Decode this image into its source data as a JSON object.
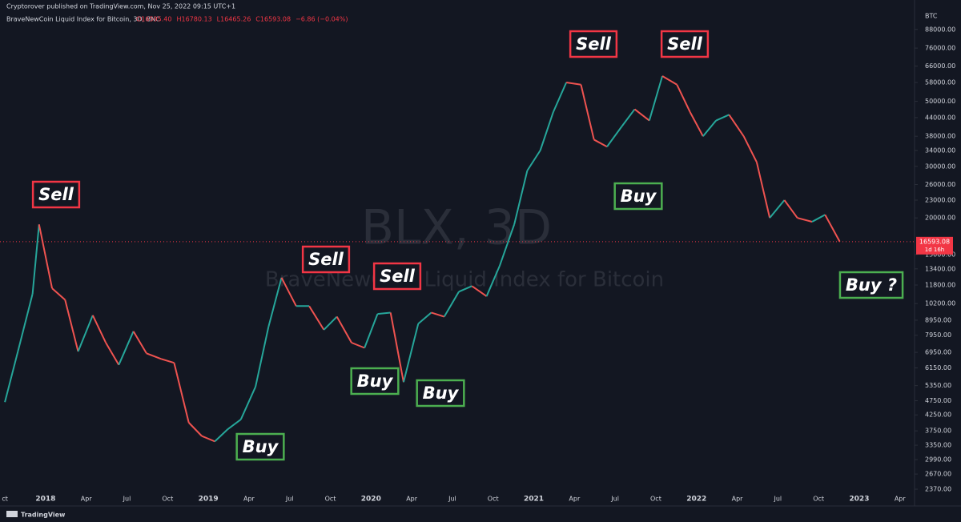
{
  "header": "Cryptorover published on TradingView.com, Nov 25, 2022 09:15 UTC+1",
  "footer": "TradingView",
  "chart_data": {
    "type": "line",
    "title": "BraveNewCoin Liquid Index for Bitcoin, 3D, BNC",
    "legend_values": [
      "O16595.40",
      "H16780.13",
      "L16465.26",
      "C16593.08",
      "−6.86 (−0.04%)"
    ],
    "watermark": [
      "BLX, 3D",
      "BraveNewCoin Liquid Index for Bitcoin"
    ],
    "y_unit": "BTC",
    "log_scale": true,
    "grid": false,
    "up_color": "#26a69a",
    "down_color": "#ef5350",
    "last_price": {
      "value": 16593.08,
      "label": "16593.08"
    },
    "countdown": "1d 16h",
    "xlim": [
      2017.72,
      2023.33
    ],
    "ylim": [
      2240,
      93000
    ],
    "x": [
      2017.75,
      2017.83,
      2017.92,
      2017.96,
      2018.04,
      2018.12,
      2018.2,
      2018.29,
      2018.37,
      2018.45,
      2018.54,
      2018.62,
      2018.71,
      2018.79,
      2018.88,
      2018.96,
      2019.04,
      2019.12,
      2019.2,
      2019.29,
      2019.37,
      2019.45,
      2019.54,
      2019.62,
      2019.71,
      2019.79,
      2019.88,
      2019.96,
      2020.04,
      2020.12,
      2020.2,
      2020.29,
      2020.37,
      2020.45,
      2020.54,
      2020.62,
      2020.71,
      2020.79,
      2020.88,
      2020.96,
      2021.04,
      2021.12,
      2021.2,
      2021.29,
      2021.37,
      2021.45,
      2021.54,
      2021.62,
      2021.71,
      2021.79,
      2021.88,
      2021.96,
      2022.04,
      2022.12,
      2022.2,
      2022.29,
      2022.37,
      2022.45,
      2022.54,
      2022.62,
      2022.71,
      2022.79,
      2022.88
    ],
    "series": [
      {
        "name": "BLX",
        "values": [
          4700,
          7000,
          11000,
          19000,
          11500,
          10500,
          7000,
          9300,
          7500,
          6300,
          8200,
          6900,
          6600,
          6400,
          4000,
          3600,
          3450,
          3800,
          4100,
          5300,
          8500,
          12500,
          10000,
          10000,
          8300,
          9200,
          7500,
          7200,
          9400,
          9500,
          5500,
          8700,
          9500,
          9200,
          11200,
          11700,
          10800,
          13700,
          19000,
          29000,
          34000,
          46000,
          58000,
          57000,
          37000,
          35000,
          41000,
          47000,
          43000,
          61000,
          57000,
          46000,
          38000,
          43000,
          45000,
          38000,
          31000,
          20000,
          23000,
          20000,
          19400,
          20500,
          16600
        ]
      }
    ],
    "annotations": [
      "Sell",
      "Sell",
      "Sell",
      "Sell",
      "Sell",
      "Buy",
      "Buy",
      "Buy",
      "Buy",
      "Buy ?"
    ],
    "xticks": [
      {
        "value": 2017.75,
        "label": "ct"
      },
      2018,
      {
        "value": 2018.25,
        "label": "Apr"
      },
      {
        "value": 2018.5,
        "label": "Jul"
      },
      {
        "value": 2018.75,
        "label": "Oct"
      },
      2019,
      {
        "value": 2019.25,
        "label": "Apr"
      },
      {
        "value": 2019.5,
        "label": "Jul"
      },
      {
        "value": 2019.75,
        "label": "Oct"
      },
      2020,
      {
        "value": 2020.25,
        "label": "Apr"
      },
      {
        "value": 2020.5,
        "label": "Jul"
      },
      {
        "value": 2020.75,
        "label": "Oct"
      },
      2021,
      {
        "value": 2021.25,
        "label": "Apr"
      },
      {
        "value": 2021.5,
        "label": "Jul"
      },
      {
        "value": 2021.75,
        "label": "Oct"
      },
      2022,
      {
        "value": 2022.25,
        "label": "Apr"
      },
      {
        "value": 2022.5,
        "label": "Jul"
      },
      {
        "value": 2022.75,
        "label": "Oct"
      },
      2023,
      {
        "value": 2023.25,
        "label": "Apr"
      }
    ],
    "yticks": [
      {
        "value": 88000,
        "label": "88000.00"
      },
      {
        "value": 76000,
        "label": "76000.00"
      },
      {
        "value": 66000,
        "label": "66000.00"
      },
      {
        "value": 58000,
        "label": "58000.00"
      },
      {
        "value": 50000,
        "label": "50000.00"
      },
      {
        "value": 44000,
        "label": "44000.00"
      },
      {
        "value": 38000,
        "label": "38000.00"
      },
      {
        "value": 34000,
        "label": "34000.00"
      },
      {
        "value": 30000,
        "label": "30000.00"
      },
      {
        "value": 26000,
        "label": "26000.00"
      },
      {
        "value": 23000,
        "label": "23000.00"
      },
      {
        "value": 20000,
        "label": "20000.00"
      },
      {
        "value": 15000,
        "label": "15000.00"
      },
      {
        "value": 13400,
        "label": "13400.00"
      },
      {
        "value": 11800,
        "label": "11800.00"
      },
      {
        "value": 10200,
        "label": "10200.00"
      },
      {
        "value": 8950,
        "label": "8950.00"
      },
      {
        "value": 7950,
        "label": "7950.00"
      },
      {
        "value": 6950,
        "label": "6950.00"
      },
      {
        "value": 6150,
        "label": "6150.00"
      },
      {
        "value": 5350,
        "label": "5350.00"
      },
      {
        "value": 4750,
        "label": "4750.00"
      },
      {
        "value": 4250,
        "label": "4250.00"
      },
      {
        "value": 3750,
        "label": "3750.00"
      },
      {
        "value": 3350,
        "label": "3350.00"
      },
      {
        "value": 2990,
        "label": "2990.00"
      },
      {
        "value": 2670,
        "label": "2670.00"
      },
      {
        "value": 2370,
        "label": "2370.00"
      }
    ]
  }
}
